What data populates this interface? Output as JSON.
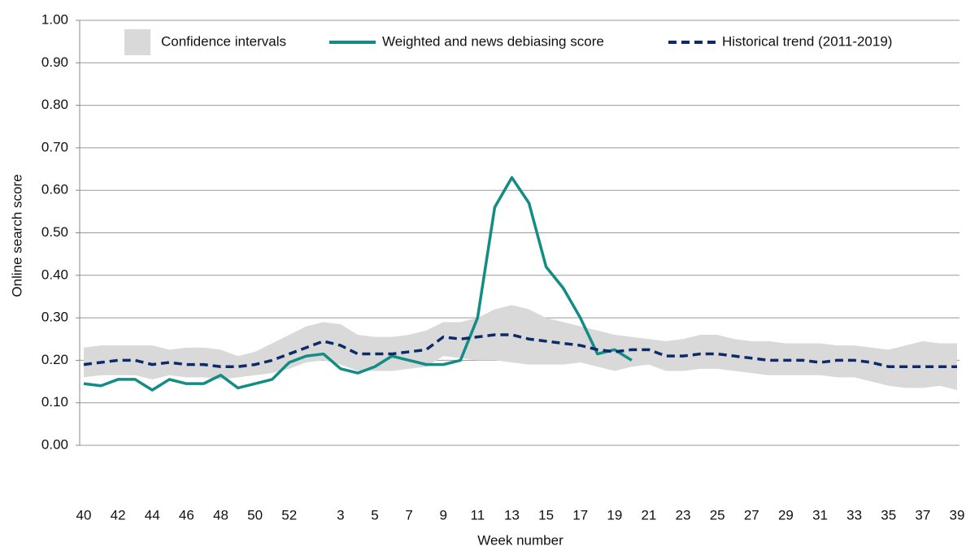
{
  "chart_data": {
    "type": "line",
    "x_label": "Week number",
    "y_label": "Online search score",
    "categories": [
      "40",
      null,
      "42",
      null,
      "44",
      null,
      "46",
      null,
      "48",
      null,
      "50",
      null,
      "52",
      null,
      null,
      "3",
      null,
      "5",
      null,
      "7",
      null,
      "9",
      null,
      "11",
      null,
      "13",
      null,
      "15",
      null,
      "17",
      null,
      "19",
      null,
      "21",
      null,
      "23",
      null,
      "25",
      null,
      "27",
      null,
      "29",
      null,
      "31",
      null,
      "33",
      null,
      "35",
      null,
      "37",
      null,
      "39"
    ],
    "ylim": [
      0,
      1
    ],
    "yticks": [
      {
        "value": 0,
        "label": "0.00"
      },
      {
        "value": 0.1,
        "label": "0.10"
      },
      {
        "value": 0.2,
        "label": "0.20"
      },
      {
        "value": 0.3,
        "label": "0.30"
      },
      {
        "value": 0.4,
        "label": "0.40"
      },
      {
        "value": 0.5,
        "label": "0.50"
      },
      {
        "value": 0.6,
        "label": "0.60"
      },
      {
        "value": 0.7,
        "label": "0.70"
      },
      {
        "value": 0.8,
        "label": "0.80"
      },
      {
        "value": 0.9,
        "label": "0.90"
      },
      {
        "value": 1,
        "label": "1.00"
      }
    ],
    "grid": true,
    "legend": "top",
    "band": {
      "name": "Confidence intervals",
      "color": "#d9d9d9",
      "upper": [
        0.23,
        0.235,
        0.235,
        0.235,
        0.235,
        0.225,
        0.23,
        0.23,
        0.225,
        0.21,
        0.22,
        0.24,
        0.26,
        0.28,
        0.29,
        0.285,
        0.26,
        0.255,
        0.255,
        0.26,
        0.27,
        0.29,
        0.29,
        0.3,
        0.32,
        0.33,
        0.32,
        0.3,
        0.29,
        0.28,
        0.27,
        0.26,
        0.255,
        0.25,
        0.245,
        0.25,
        0.26,
        0.26,
        0.25,
        0.245,
        0.245,
        0.24,
        0.24,
        0.24,
        0.235,
        0.235,
        0.23,
        0.225,
        0.235,
        0.245,
        0.24,
        0.24
      ],
      "lower": [
        0.16,
        0.165,
        0.165,
        0.165,
        0.155,
        0.165,
        0.16,
        0.16,
        0.155,
        0.16,
        0.165,
        0.17,
        0.18,
        0.195,
        0.2,
        0.19,
        0.175,
        0.175,
        0.175,
        0.18,
        0.185,
        0.21,
        0.205,
        0.2,
        0.2,
        0.195,
        0.19,
        0.19,
        0.19,
        0.195,
        0.185,
        0.175,
        0.185,
        0.19,
        0.175,
        0.175,
        0.18,
        0.18,
        0.175,
        0.17,
        0.165,
        0.165,
        0.165,
        0.165,
        0.16,
        0.16,
        0.15,
        0.14,
        0.135,
        0.135,
        0.14,
        0.13
      ]
    },
    "series": [
      {
        "name": "Weighted and news debiasing score",
        "color": "#128c84",
        "dash": false,
        "values": [
          0.145,
          0.14,
          0.155,
          0.155,
          0.13,
          0.155,
          0.145,
          0.145,
          0.165,
          0.135,
          0.145,
          0.155,
          0.195,
          0.21,
          0.215,
          0.18,
          0.17,
          0.185,
          0.21,
          0.2,
          0.19,
          0.19,
          0.2,
          0.3,
          0.56,
          0.63,
          0.57,
          0.42,
          0.37,
          0.3,
          0.215,
          0.225,
          0.2,
          null,
          null,
          null,
          null,
          null,
          null,
          null,
          null,
          null,
          null,
          null,
          null,
          null,
          null,
          null,
          null,
          null,
          null,
          null
        ]
      },
      {
        "name": "Historical trend (2011-2019)",
        "color": "#0d2a6b",
        "dash": true,
        "values": [
          0.19,
          0.195,
          0.2,
          0.2,
          0.19,
          0.195,
          0.19,
          0.19,
          0.185,
          0.185,
          0.19,
          0.2,
          0.215,
          0.23,
          0.245,
          0.235,
          0.215,
          0.215,
          0.215,
          0.22,
          0.225,
          0.255,
          0.25,
          0.255,
          0.26,
          0.26,
          0.25,
          0.245,
          0.24,
          0.235,
          0.225,
          0.22,
          0.225,
          0.225,
          0.21,
          0.21,
          0.215,
          0.215,
          0.21,
          0.205,
          0.2,
          0.2,
          0.2,
          0.195,
          0.2,
          0.2,
          0.195,
          0.185,
          0.185,
          0.185,
          0.185,
          0.185
        ]
      }
    ]
  }
}
